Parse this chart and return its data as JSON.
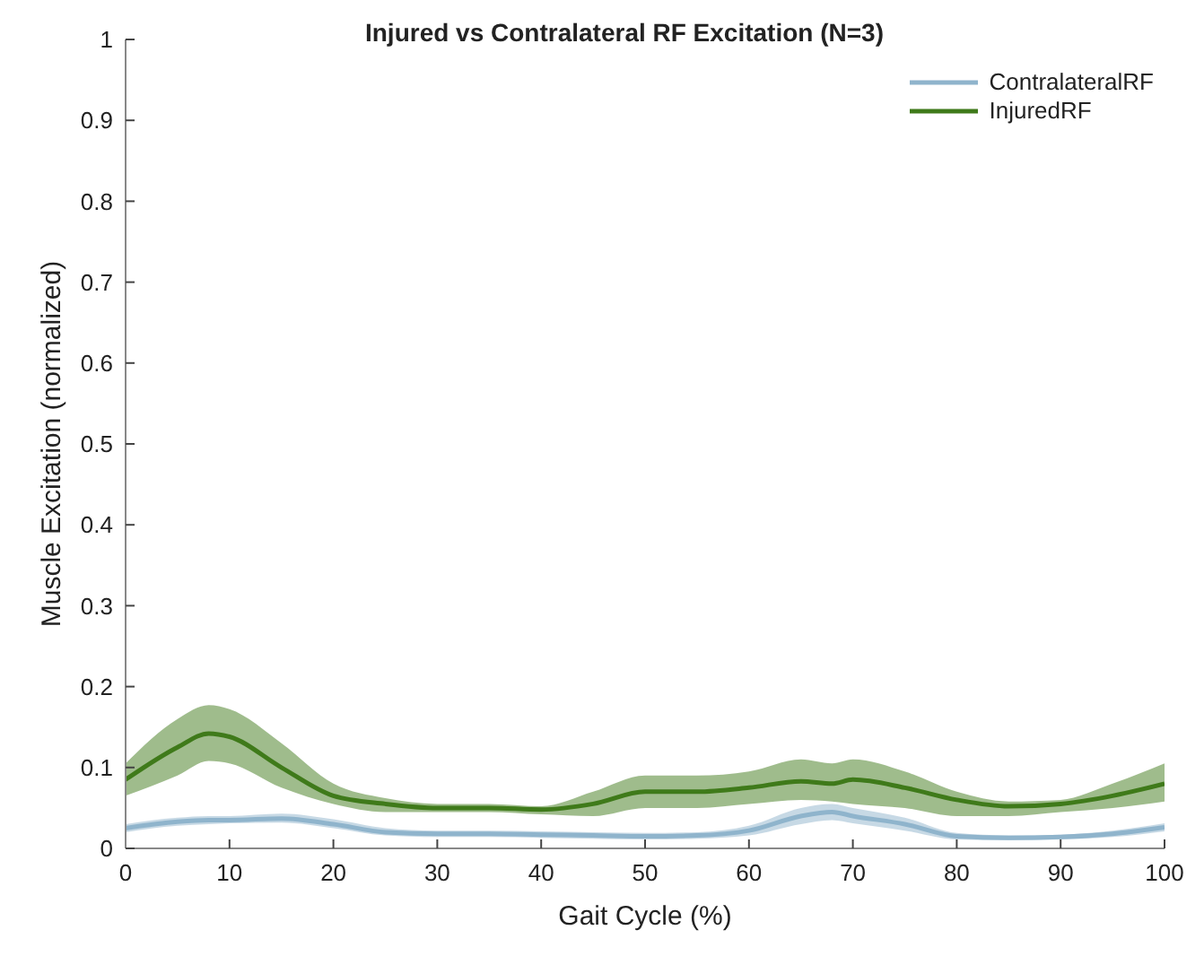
{
  "chart_data": {
    "type": "line",
    "title": "Injured vs Contralateral RF Excitation (N=3)",
    "xlabel": "Gait Cycle (%)",
    "ylabel": "Muscle Excitation (normalized)",
    "x": [
      0,
      5,
      8,
      10,
      15,
      20,
      25,
      30,
      35,
      40,
      45,
      50,
      55,
      60,
      65,
      68,
      70,
      75,
      80,
      85,
      90,
      95,
      100
    ],
    "series": [
      {
        "name": "ContralateralRF",
        "color": "#8fb4cc",
        "values": [
          0.025,
          0.033,
          0.035,
          0.035,
          0.037,
          0.03,
          0.02,
          0.018,
          0.018,
          0.017,
          0.016,
          0.015,
          0.016,
          0.022,
          0.04,
          0.045,
          0.04,
          0.03,
          0.015,
          0.013,
          0.014,
          0.018,
          0.026
        ],
        "lower": [
          0.02,
          0.028,
          0.03,
          0.031,
          0.032,
          0.025,
          0.016,
          0.014,
          0.014,
          0.013,
          0.012,
          0.011,
          0.012,
          0.016,
          0.03,
          0.035,
          0.031,
          0.022,
          0.011,
          0.01,
          0.011,
          0.014,
          0.021
        ],
        "upper": [
          0.03,
          0.038,
          0.04,
          0.04,
          0.043,
          0.036,
          0.025,
          0.022,
          0.022,
          0.021,
          0.02,
          0.019,
          0.02,
          0.028,
          0.05,
          0.055,
          0.05,
          0.038,
          0.019,
          0.016,
          0.017,
          0.022,
          0.031
        ]
      },
      {
        "name": "InjuredRF",
        "color": "#3f7a1a",
        "values": [
          0.085,
          0.125,
          0.142,
          0.138,
          0.1,
          0.065,
          0.055,
          0.05,
          0.05,
          0.048,
          0.055,
          0.07,
          0.07,
          0.075,
          0.083,
          0.08,
          0.085,
          0.075,
          0.06,
          0.052,
          0.055,
          0.065,
          0.08
        ],
        "lower": [
          0.065,
          0.09,
          0.108,
          0.105,
          0.075,
          0.055,
          0.045,
          0.045,
          0.045,
          0.042,
          0.04,
          0.05,
          0.05,
          0.055,
          0.06,
          0.058,
          0.055,
          0.05,
          0.04,
          0.04,
          0.045,
          0.05,
          0.058
        ],
        "upper": [
          0.105,
          0.16,
          0.177,
          0.172,
          0.13,
          0.08,
          0.062,
          0.055,
          0.055,
          0.052,
          0.07,
          0.09,
          0.09,
          0.095,
          0.11,
          0.105,
          0.11,
          0.095,
          0.07,
          0.058,
          0.06,
          0.08,
          0.105
        ]
      }
    ],
    "xlim": [
      0,
      100
    ],
    "xticks": [
      0,
      10,
      20,
      30,
      40,
      50,
      60,
      70,
      80,
      90,
      100
    ],
    "ylim": [
      0,
      1
    ],
    "yticks": [
      0,
      0.1,
      0.2,
      0.3,
      0.4,
      0.5,
      0.6,
      0.7,
      0.8,
      0.9,
      1
    ],
    "legend": "top right",
    "grid": false,
    "marker": "none",
    "line_style": "solid"
  }
}
